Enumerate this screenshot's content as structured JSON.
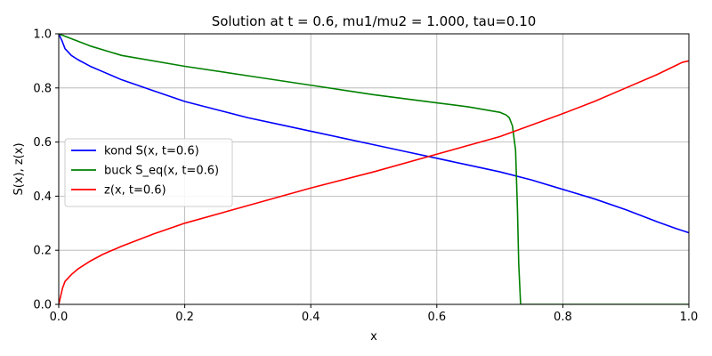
{
  "chart_data": {
    "type": "line",
    "title": "Solution at t = 0.6, mu1/mu2 = 1.000, tau=0.10",
    "xlabel": "x",
    "ylabel": "S(x), z(x)",
    "xlim": [
      0,
      1
    ],
    "ylim": [
      0,
      1
    ],
    "xticks": [
      0,
      0.2,
      0.4,
      0.6,
      0.8,
      1.0
    ],
    "xtick_labels": [
      "0.0",
      "0.2",
      "0.4",
      "0.6",
      "0.8",
      "1.0"
    ],
    "yticks": [
      0,
      0.2,
      0.4,
      0.6,
      0.8,
      1.0
    ],
    "ytick_labels": [
      "0.0",
      "0.2",
      "0.4",
      "0.6",
      "0.8",
      "1.0"
    ],
    "grid": true,
    "legend_position": "center-left",
    "series": [
      {
        "name": "kond S(x, t=0.6)",
        "color": "#0000ff",
        "x": [
          0,
          0.005,
          0.01,
          0.02,
          0.03,
          0.05,
          0.07,
          0.1,
          0.15,
          0.2,
          0.25,
          0.3,
          0.35,
          0.4,
          0.45,
          0.5,
          0.55,
          0.6,
          0.65,
          0.7,
          0.75,
          0.8,
          0.85,
          0.9,
          0.95,
          0.98,
          1.0
        ],
        "y": [
          1.0,
          0.975,
          0.945,
          0.92,
          0.905,
          0.88,
          0.86,
          0.83,
          0.79,
          0.75,
          0.72,
          0.69,
          0.665,
          0.64,
          0.615,
          0.59,
          0.565,
          0.54,
          0.515,
          0.49,
          0.46,
          0.425,
          0.39,
          0.35,
          0.305,
          0.28,
          0.265
        ]
      },
      {
        "name": "buck S_eq(x, t=0.6)",
        "color": "#008000",
        "x": [
          0,
          0.05,
          0.1,
          0.2,
          0.3,
          0.4,
          0.5,
          0.6,
          0.65,
          0.7,
          0.71,
          0.715,
          0.72,
          0.725,
          0.728,
          0.73,
          0.733,
          0.74,
          0.8,
          0.9,
          1.0
        ],
        "y": [
          1.0,
          0.955,
          0.92,
          0.88,
          0.845,
          0.81,
          0.775,
          0.745,
          0.73,
          0.71,
          0.7,
          0.69,
          0.66,
          0.57,
          0.35,
          0.15,
          0.0,
          0.0,
          0.0,
          0.0,
          0.0
        ]
      },
      {
        "name": "z(x, t=0.6)",
        "color": "#ff0000",
        "x": [
          0,
          0.003,
          0.006,
          0.01,
          0.02,
          0.03,
          0.05,
          0.07,
          0.1,
          0.15,
          0.2,
          0.3,
          0.4,
          0.5,
          0.6,
          0.7,
          0.8,
          0.85,
          0.9,
          0.95,
          0.99,
          1.0
        ],
        "y": [
          0.0,
          0.03,
          0.06,
          0.085,
          0.11,
          0.13,
          0.16,
          0.185,
          0.215,
          0.26,
          0.3,
          0.365,
          0.43,
          0.49,
          0.555,
          0.62,
          0.705,
          0.75,
          0.8,
          0.85,
          0.895,
          0.9
        ]
      }
    ]
  }
}
